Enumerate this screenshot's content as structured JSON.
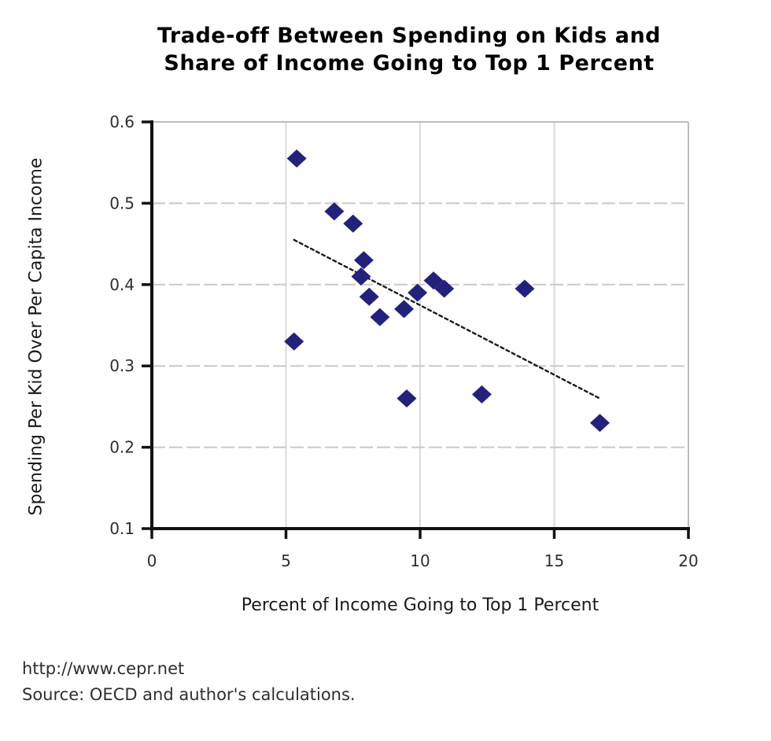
{
  "title": {
    "line1": "Trade-off Between Spending on Kids and",
    "line2": "Share of Income Going to Top 1 Percent"
  },
  "footer": {
    "url": "http://www.cepr.net",
    "source": "Source: OECD and author's calculations."
  },
  "colors": {
    "marker": "#22227d",
    "trendline": "#1a1a1a",
    "axis": "#111111",
    "gridline_h": "#c9c9c9",
    "gridline_v": "#dadada",
    "plot_border": "#bdbdbd",
    "tick_label": "#2e2e2e",
    "background": "#ffffff"
  },
  "chart_data": {
    "type": "scatter",
    "title": "Trade-off Between Spending on Kids and Share of Income Going to Top 1 Percent",
    "xlabel": "Percent of Income Going to Top 1 Percent",
    "ylabel": "Spending Per Kid Over Per Capita Income",
    "xlim": [
      0,
      20
    ],
    "ylim": [
      0.1,
      0.6
    ],
    "x_ticks": [
      0,
      5,
      10,
      15,
      20
    ],
    "x_tick_labels": [
      "0",
      "5",
      "10",
      "15",
      "20"
    ],
    "y_ticks": [
      0.1,
      0.2,
      0.3,
      0.4,
      0.5,
      0.6
    ],
    "y_tick_labels": [
      "0.1",
      "0.2",
      "0.3",
      "0.4",
      "0.5",
      "0.6"
    ],
    "grid": true,
    "legend": "none",
    "marker": "diamond",
    "points": [
      {
        "x": 5.3,
        "y": 0.33
      },
      {
        "x": 5.4,
        "y": 0.555
      },
      {
        "x": 6.8,
        "y": 0.49
      },
      {
        "x": 7.5,
        "y": 0.475
      },
      {
        "x": 7.8,
        "y": 0.41
      },
      {
        "x": 7.9,
        "y": 0.43
      },
      {
        "x": 8.1,
        "y": 0.385
      },
      {
        "x": 8.5,
        "y": 0.36
      },
      {
        "x": 9.4,
        "y": 0.37
      },
      {
        "x": 9.5,
        "y": 0.26
      },
      {
        "x": 9.9,
        "y": 0.39
      },
      {
        "x": 10.5,
        "y": 0.405
      },
      {
        "x": 10.9,
        "y": 0.395
      },
      {
        "x": 12.3,
        "y": 0.265
      },
      {
        "x": 13.9,
        "y": 0.395
      },
      {
        "x": 16.7,
        "y": 0.23
      }
    ],
    "trendline": {
      "x1": 5.3,
      "y1": 0.455,
      "x2": 16.7,
      "y2": 0.26,
      "style": "dotted"
    }
  }
}
